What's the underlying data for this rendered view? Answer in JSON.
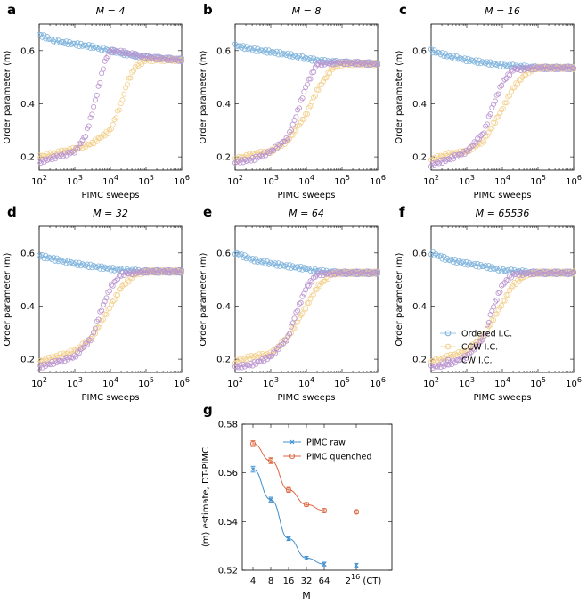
{
  "chart_data": [
    {
      "type": "scatter",
      "panel": "a",
      "title": "M = 4",
      "xlabel": "PIMC sweeps",
      "ylabel": "Order parameter ⟨m⟩",
      "xscale": "log",
      "xlim": [
        100,
        1000000
      ],
      "ylim": [
        0.15,
        0.7
      ],
      "xticks": [
        "10^2",
        "10^3",
        "10^4",
        "10^5",
        "10^6"
      ],
      "yticks": [
        "0.2",
        "0.4",
        "0.6"
      ],
      "series": [
        {
          "name": "Ordered I.C.",
          "x": [
            100,
            300,
            1000,
            3000,
            10000,
            30000,
            100000,
            300000,
            1000000
          ],
          "y": [
            0.66,
            0.635,
            0.625,
            0.615,
            0.6,
            0.585,
            0.575,
            0.57,
            0.565
          ]
        },
        {
          "name": "CCW I.C.",
          "x": [
            100,
            300,
            1000,
            3000,
            10000,
            20000,
            30000,
            50000,
            100000,
            300000,
            1000000
          ],
          "y": [
            0.2,
            0.215,
            0.23,
            0.25,
            0.3,
            0.4,
            0.48,
            0.54,
            0.565,
            0.565,
            0.565
          ]
        },
        {
          "name": "CW I.C.",
          "x": [
            100,
            300,
            1000,
            2000,
            3000,
            5000,
            7000,
            10000,
            20000,
            100000,
            1000000
          ],
          "y": [
            0.18,
            0.2,
            0.22,
            0.28,
            0.36,
            0.48,
            0.56,
            0.6,
            0.595,
            0.575,
            0.565
          ]
        }
      ]
    },
    {
      "type": "scatter",
      "panel": "b",
      "title": "M = 8",
      "xlabel": "PIMC sweeps",
      "ylabel": "Order parameter ⟨m⟩",
      "xscale": "log",
      "xlim": [
        100,
        1000000
      ],
      "ylim": [
        0.15,
        0.7
      ],
      "xticks": [
        "10^2",
        "10^3",
        "10^4",
        "10^5",
        "10^6"
      ],
      "yticks": [
        "0.2",
        "0.4",
        "0.6"
      ],
      "series": [
        {
          "name": "Ordered I.C.",
          "x": [
            100,
            300,
            1000,
            3000,
            10000,
            30000,
            100000,
            1000000
          ],
          "y": [
            0.62,
            0.605,
            0.595,
            0.585,
            0.57,
            0.56,
            0.555,
            0.55
          ]
        },
        {
          "name": "CCW I.C.",
          "x": [
            100,
            300,
            1000,
            3000,
            10000,
            20000,
            50000,
            100000,
            1000000
          ],
          "y": [
            0.19,
            0.21,
            0.22,
            0.26,
            0.36,
            0.45,
            0.53,
            0.55,
            0.55
          ]
        },
        {
          "name": "CW I.C.",
          "x": [
            100,
            300,
            1000,
            3000,
            5000,
            10000,
            20000,
            100000,
            1000000
          ],
          "y": [
            0.18,
            0.19,
            0.22,
            0.27,
            0.35,
            0.47,
            0.55,
            0.555,
            0.55
          ]
        }
      ]
    },
    {
      "type": "scatter",
      "panel": "c",
      "title": "M = 16",
      "xlabel": "PIMC sweeps",
      "ylabel": "Order parameter ⟨m⟩",
      "xscale": "log",
      "xlim": [
        100,
        1000000
      ],
      "ylim": [
        0.15,
        0.7
      ],
      "xticks": [
        "10^2",
        "10^3",
        "10^4",
        "10^5",
        "10^6"
      ],
      "yticks": [
        "0.2",
        "0.4",
        "0.6"
      ],
      "series": [
        {
          "name": "Ordered I.C.",
          "x": [
            100,
            300,
            1000,
            3000,
            10000,
            30000,
            100000,
            1000000
          ],
          "y": [
            0.6,
            0.58,
            0.565,
            0.555,
            0.545,
            0.54,
            0.535,
            0.535
          ]
        },
        {
          "name": "CCW I.C.",
          "x": [
            100,
            300,
            1000,
            3000,
            10000,
            20000,
            50000,
            100000,
            1000000
          ],
          "y": [
            0.19,
            0.21,
            0.22,
            0.26,
            0.38,
            0.46,
            0.52,
            0.535,
            0.535
          ]
        },
        {
          "name": "CW I.C.",
          "x": [
            100,
            300,
            1000,
            3000,
            5000,
            10000,
            20000,
            100000,
            1000000
          ],
          "y": [
            0.17,
            0.19,
            0.22,
            0.29,
            0.38,
            0.48,
            0.53,
            0.535,
            0.535
          ]
        }
      ]
    },
    {
      "type": "scatter",
      "panel": "d",
      "title": "M = 32",
      "xlabel": "PIMC sweeps",
      "ylabel": "Order parameter ⟨m⟩",
      "xscale": "log",
      "xlim": [
        100,
        1000000
      ],
      "ylim": [
        0.15,
        0.7
      ],
      "xticks": [
        "10^2",
        "10^3",
        "10^4",
        "10^5",
        "10^6"
      ],
      "yticks": [
        "0.2",
        "0.4",
        "0.6"
      ],
      "series": [
        {
          "name": "Ordered I.C.",
          "x": [
            100,
            300,
            1000,
            3000,
            10000,
            30000,
            100000,
            1000000
          ],
          "y": [
            0.59,
            0.575,
            0.56,
            0.55,
            0.54,
            0.535,
            0.53,
            0.53
          ]
        },
        {
          "name": "CCW I.C.",
          "x": [
            100,
            300,
            1000,
            3000,
            10000,
            20000,
            50000,
            100000,
            1000000
          ],
          "y": [
            0.19,
            0.21,
            0.23,
            0.28,
            0.4,
            0.47,
            0.52,
            0.53,
            0.53
          ]
        },
        {
          "name": "CW I.C.",
          "x": [
            100,
            300,
            1000,
            3000,
            5000,
            10000,
            20000,
            100000,
            1000000
          ],
          "y": [
            0.17,
            0.19,
            0.21,
            0.28,
            0.37,
            0.47,
            0.52,
            0.53,
            0.53
          ]
        }
      ]
    },
    {
      "type": "scatter",
      "panel": "e",
      "title": "M = 64",
      "xlabel": "PIMC sweeps",
      "ylabel": "Order parameter ⟨m⟩",
      "xscale": "log",
      "xlim": [
        100,
        1000000
      ],
      "ylim": [
        0.15,
        0.7
      ],
      "xticks": [
        "10^2",
        "10^3",
        "10^4",
        "10^5",
        "10^6"
      ],
      "yticks": [
        "0.2",
        "0.4",
        "0.6"
      ],
      "series": [
        {
          "name": "Ordered I.C.",
          "x": [
            100,
            300,
            1000,
            3000,
            10000,
            30000,
            100000,
            1000000
          ],
          "y": [
            0.6,
            0.575,
            0.56,
            0.55,
            0.54,
            0.53,
            0.525,
            0.525
          ]
        },
        {
          "name": "CCW I.C.",
          "x": [
            100,
            300,
            1000,
            3000,
            10000,
            20000,
            50000,
            100000,
            1000000
          ],
          "y": [
            0.19,
            0.21,
            0.22,
            0.28,
            0.4,
            0.47,
            0.52,
            0.525,
            0.525
          ]
        },
        {
          "name": "CW I.C.",
          "x": [
            100,
            300,
            1000,
            3000,
            5000,
            10000,
            20000,
            100000,
            1000000
          ],
          "y": [
            0.17,
            0.18,
            0.21,
            0.28,
            0.37,
            0.47,
            0.52,
            0.525,
            0.525
          ]
        }
      ]
    },
    {
      "type": "scatter",
      "panel": "f",
      "title": "M = 65536",
      "xlabel": "PIMC sweeps",
      "ylabel": "Order parameter ⟨m⟩",
      "xscale": "log",
      "xlim": [
        100,
        1000000
      ],
      "ylim": [
        0.15,
        0.7
      ],
      "xticks": [
        "10^2",
        "10^3",
        "10^4",
        "10^5",
        "10^6"
      ],
      "yticks": [
        "0.2",
        "0.4",
        "0.6"
      ],
      "legend": [
        "Ordered I.C.",
        "CCW I.C.",
        "CW I.C."
      ],
      "legend_position": "bottom-right",
      "series": [
        {
          "name": "Ordered I.C.",
          "x": [
            100,
            300,
            1000,
            3000,
            10000,
            30000,
            100000,
            1000000
          ],
          "y": [
            0.6,
            0.575,
            0.56,
            0.55,
            0.535,
            0.53,
            0.525,
            0.525
          ]
        },
        {
          "name": "CCW I.C.",
          "x": [
            100,
            300,
            1000,
            3000,
            10000,
            20000,
            50000,
            100000,
            1000000
          ],
          "y": [
            0.19,
            0.21,
            0.23,
            0.29,
            0.41,
            0.48,
            0.52,
            0.525,
            0.525
          ]
        },
        {
          "name": "CW I.C.",
          "x": [
            100,
            300,
            1000,
            3000,
            5000,
            10000,
            20000,
            100000,
            1000000
          ],
          "y": [
            0.17,
            0.18,
            0.21,
            0.28,
            0.38,
            0.48,
            0.52,
            0.525,
            0.525
          ]
        }
      ]
    },
    {
      "type": "line",
      "panel": "g",
      "xlabel": "M",
      "ylabel": "⟨m⟩ estimate, DT-PIMC",
      "categories": [
        "4",
        "8",
        "16",
        "32",
        "64",
        "2^16 (CT)"
      ],
      "ylim": [
        0.52,
        0.58
      ],
      "yticks": [
        "0.52",
        "0.54",
        "0.56",
        "0.58"
      ],
      "legend": [
        "PIMC raw",
        "PIMC quenched"
      ],
      "legend_position": "top-right",
      "series": [
        {
          "name": "PIMC raw",
          "values": [
            0.5615,
            0.549,
            0.533,
            0.525,
            0.5225,
            0.522
          ],
          "errors": [
            0.0012,
            0.001,
            0.0008,
            0.0007,
            0.0008,
            0.0008
          ]
        },
        {
          "name": "PIMC quenched",
          "values": [
            0.572,
            0.565,
            0.553,
            0.547,
            0.5445,
            0.544
          ],
          "errors": [
            0.0012,
            0.0012,
            0.001,
            0.0008,
            0.0008,
            0.0008
          ]
        }
      ]
    }
  ],
  "colors": {
    "ordered": "#7db3dc",
    "ccw": "#f3cf8b",
    "cw": "#b994cf",
    "raw": "#3f8fce",
    "quenched": "#dd6a45"
  }
}
